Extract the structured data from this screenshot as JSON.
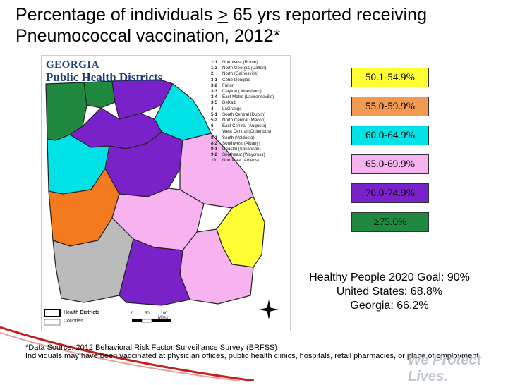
{
  "title": {
    "line1_pre": "Percentage of individuals ",
    "line1_u": ">",
    "line1_post": " 65 yrs reported receiving",
    "line2": "Pneumococcal vaccination, 2012*"
  },
  "map": {
    "header_line1": "GEORGIA",
    "header_line2": "Public Health Districts",
    "districts": [
      {
        "num": "1-1",
        "name": "Northwest (Rome)"
      },
      {
        "num": "1-2",
        "name": "North Georgia (Dalton)"
      },
      {
        "num": "2",
        "name": "North (Gainesville)"
      },
      {
        "num": "3-1",
        "name": "Cobb-Douglas"
      },
      {
        "num": "3-2",
        "name": "Fulton"
      },
      {
        "num": "3-3",
        "name": "Clayton (Jonesboro)"
      },
      {
        "num": "3-4",
        "name": "East Metro (Lawrenceville)"
      },
      {
        "num": "3-5",
        "name": "DeKalb"
      },
      {
        "num": "4",
        "name": "LaGrange"
      },
      {
        "num": "5-1",
        "name": "South Central (Dublin)"
      },
      {
        "num": "5-2",
        "name": "North Central (Macon)"
      },
      {
        "num": "6",
        "name": "East Central (Augusta)"
      },
      {
        "num": "7",
        "name": "West Central (Columbus)"
      },
      {
        "num": "8-1",
        "name": "South (Valdosta)"
      },
      {
        "num": "8-2",
        "name": "Southwest (Albany)"
      },
      {
        "num": "9-1",
        "name": "Coastal (Savannah)"
      },
      {
        "num": "9-2",
        "name": "Southeast (Waycross)"
      },
      {
        "num": "10",
        "name": "Northeast (Athens)"
      }
    ],
    "inset_legend": {
      "health_districts": "Health Districts",
      "counties": "Counties"
    },
    "scale": {
      "zero": "0",
      "mid": "50",
      "end": "100",
      "unit": "Miles"
    },
    "colors": {
      "c50": "#e88b2a",
      "c55": "#f37a1f",
      "c60": "#00e2e6",
      "c65": "#f6b3ef",
      "c70": "#7a22c9",
      "c75": "#1f8a3f",
      "yellow": "#ffff33",
      "gray": "#bbbbbb"
    }
  },
  "legend": [
    {
      "label": "50.1-54.9%",
      "color": "#ffff33",
      "underline": false
    },
    {
      "label": "55.0-59.9%",
      "color": "#f39a52",
      "underline": false
    },
    {
      "label": "60.0-64.9%",
      "color": "#00e2e6",
      "underline": false
    },
    {
      "label": "65.0-69.9%",
      "color": "#f6b3ef",
      "underline": false
    },
    {
      "label": "70.0-74.9%",
      "color": "#7a22c9",
      "underline": false
    },
    {
      "label": "≥75.0%",
      "color": "#1f8a3f",
      "underline": true
    }
  ],
  "stats": {
    "line1": "Healthy People 2020 Goal: 90%",
    "line2": "United States: 68.8%",
    "line3": "Georgia: 66.2%"
  },
  "footnote": {
    "line1": "*Data Source: 2012 Behavioral Risk Factor Surveillance Survey (BRFSS)",
    "line2": "Individuals may have been vaccinated at physician offices, public health clinics, hospitals, retail pharmacies, or place of employment"
  },
  "watermark": "We Protect Lives."
}
